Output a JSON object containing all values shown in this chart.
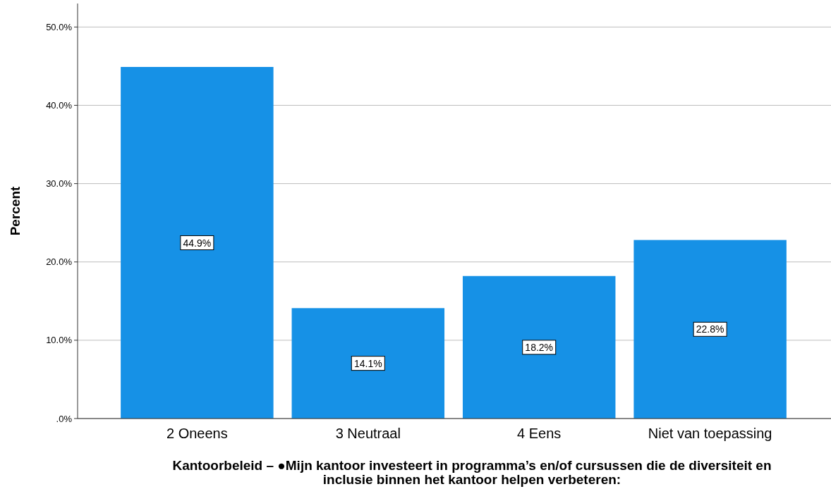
{
  "chart_data": {
    "type": "bar",
    "xlabel": "Kantoorbeleid – ●Mijn kantoor investeert in programma’s en/of cursussen die de diversiteit en inclusie binnen het kantoor helpen verbeteren:",
    "ylabel": "Percent",
    "categories": [
      "2 Oneens",
      "3 Neutraal",
      "4 Eens",
      "Niet van toepassing"
    ],
    "values": [
      44.9,
      14.1,
      18.2,
      22.8
    ],
    "value_labels": [
      "44.9%",
      "14.1%",
      "18.2%",
      "22.8%"
    ],
    "color": "#1691e6",
    "ylim": [
      0,
      53
    ],
    "yticks": [
      {
        "value": 0,
        "label": ".0%"
      },
      {
        "value": 10,
        "label": "10.0%"
      },
      {
        "value": 20,
        "label": "20.0%"
      },
      {
        "value": 30,
        "label": "30.0%"
      },
      {
        "value": 40,
        "label": "40.0%"
      },
      {
        "value": 50,
        "label": "50.0%"
      }
    ],
    "grid": "y"
  }
}
